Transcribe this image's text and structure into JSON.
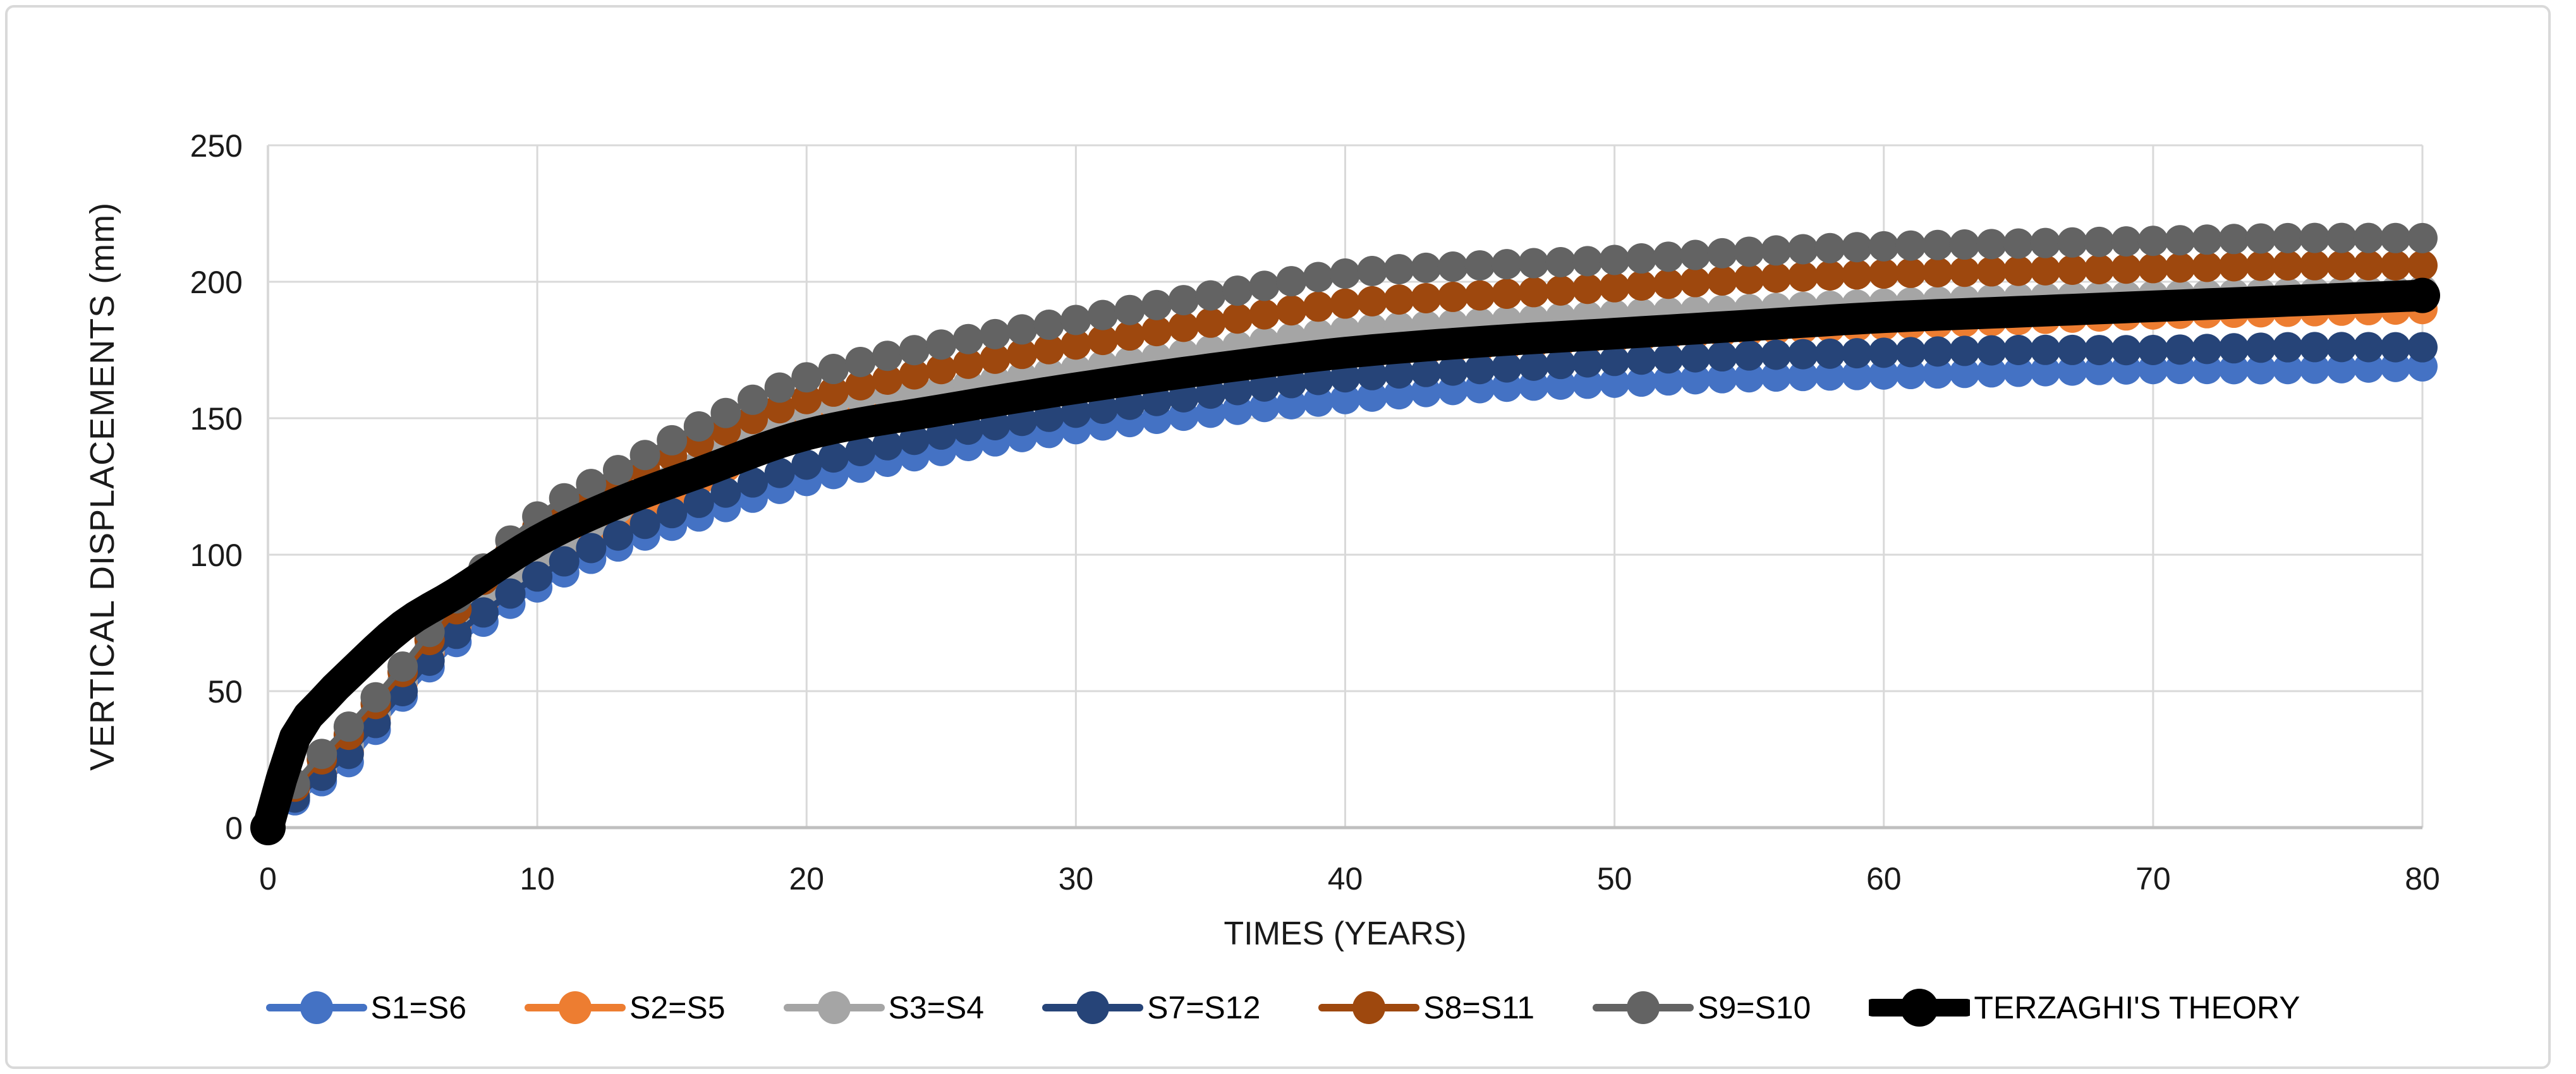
{
  "figure": {
    "background": "#ffffff",
    "border_color": "#d9d9d9",
    "gridline_color": "#d9d9d9",
    "x_axis_line_color": "#bfbfbf",
    "y_axis_line_color": "#d9d9d9",
    "tick_label_color": "#1a1a1a"
  },
  "chart_data": {
    "type": "line",
    "title": "",
    "xlabel": "TIMES (YEARS)",
    "ylabel": "VERTICAL DISPLACEMENTS (mm)",
    "xlim": [
      0,
      80
    ],
    "ylim": [
      0,
      250
    ],
    "x_ticks": [
      0,
      10,
      20,
      30,
      40,
      50,
      60,
      70,
      80
    ],
    "y_ticks": [
      0,
      50,
      100,
      150,
      200,
      250
    ],
    "grid": true,
    "legend_position": "bottom",
    "marker_interval_years": 1,
    "series": [
      {
        "name": "S1=S6",
        "color": "#4472C4",
        "marker": "circle",
        "style": "markers",
        "x": [
          1,
          2,
          3,
          5,
          7,
          10,
          13,
          16,
          20,
          25,
          30,
          35,
          40,
          45,
          50,
          55,
          60,
          65,
          70,
          75,
          80
        ],
        "y": [
          10,
          17,
          24,
          48,
          68,
          88,
          103,
          114,
          127,
          138,
          146,
          152,
          157,
          161,
          163,
          165,
          166,
          167,
          168,
          168,
          169
        ]
      },
      {
        "name": "S2=S5",
        "color": "#ED7D31",
        "marker": "circle",
        "style": "markers",
        "x": [
          1,
          2,
          3,
          5,
          7,
          10,
          13,
          16,
          20,
          25,
          30,
          35,
          40,
          45,
          50,
          55,
          60,
          65,
          70,
          75,
          80
        ],
        "y": [
          12,
          20,
          28,
          53,
          74,
          96,
          113,
          127,
          146,
          155,
          162,
          167,
          172,
          176,
          179,
          182,
          184,
          186,
          188,
          189,
          190
        ]
      },
      {
        "name": "S3=S4",
        "color": "#A5A5A5",
        "marker": "circle",
        "style": "markers",
        "x": [
          1,
          2,
          3,
          5,
          7,
          10,
          13,
          16,
          20,
          25,
          30,
          35,
          40,
          45,
          50,
          55,
          60,
          65,
          70,
          75,
          80
        ],
        "y": [
          13,
          22,
          30,
          54,
          76,
          98,
          117,
          133,
          153,
          161,
          168,
          175,
          182,
          185,
          188,
          190,
          192,
          194,
          195,
          196,
          197
        ]
      },
      {
        "name": "S7=S12",
        "color": "#264478",
        "marker": "circle",
        "style": "markers",
        "x": [
          1,
          2,
          3,
          5,
          7,
          10,
          13,
          16,
          20,
          25,
          30,
          35,
          40,
          45,
          50,
          55,
          60,
          65,
          70,
          75,
          80
        ],
        "y": [
          11,
          19,
          27,
          50,
          71,
          92,
          107,
          119,
          133,
          144,
          152,
          159,
          165,
          168,
          171,
          173,
          174,
          175,
          175,
          176,
          176
        ]
      },
      {
        "name": "S8=S11",
        "color": "#9E480E",
        "marker": "circle",
        "style": "markers",
        "x": [
          1,
          2,
          3,
          5,
          7,
          10,
          13,
          16,
          20,
          25,
          30,
          35,
          40,
          45,
          50,
          55,
          60,
          65,
          70,
          75,
          80
        ],
        "y": [
          15,
          25,
          34,
          57,
          80,
          110,
          126,
          141,
          157,
          168,
          177,
          185,
          192,
          195,
          198,
          201,
          203,
          204,
          205,
          206,
          206
        ]
      },
      {
        "name": "S9=S10",
        "color": "#636363",
        "marker": "circle",
        "style": "markers",
        "x": [
          1,
          2,
          3,
          5,
          7,
          10,
          13,
          16,
          20,
          25,
          30,
          35,
          40,
          45,
          50,
          55,
          60,
          65,
          70,
          75,
          80
        ],
        "y": [
          16,
          27,
          37,
          59,
          84,
          114,
          131,
          147,
          165,
          177,
          186,
          195,
          203,
          206,
          208,
          211,
          213,
          214,
          215,
          216,
          216
        ]
      },
      {
        "name": "TERZAGHI'S THEORY",
        "color": "#000000",
        "marker": "circle",
        "style": "thick-line",
        "x": [
          0,
          1,
          2,
          3,
          5,
          7,
          10,
          13,
          16,
          20,
          25,
          30,
          35,
          40,
          45,
          50,
          55,
          60,
          65,
          70,
          75,
          80
        ],
        "y": [
          0,
          33,
          46,
          56,
          74,
          86,
          105,
          119,
          130,
          144,
          153,
          161,
          168,
          174,
          178,
          181,
          184,
          187,
          189,
          191,
          193,
          195
        ]
      }
    ]
  }
}
